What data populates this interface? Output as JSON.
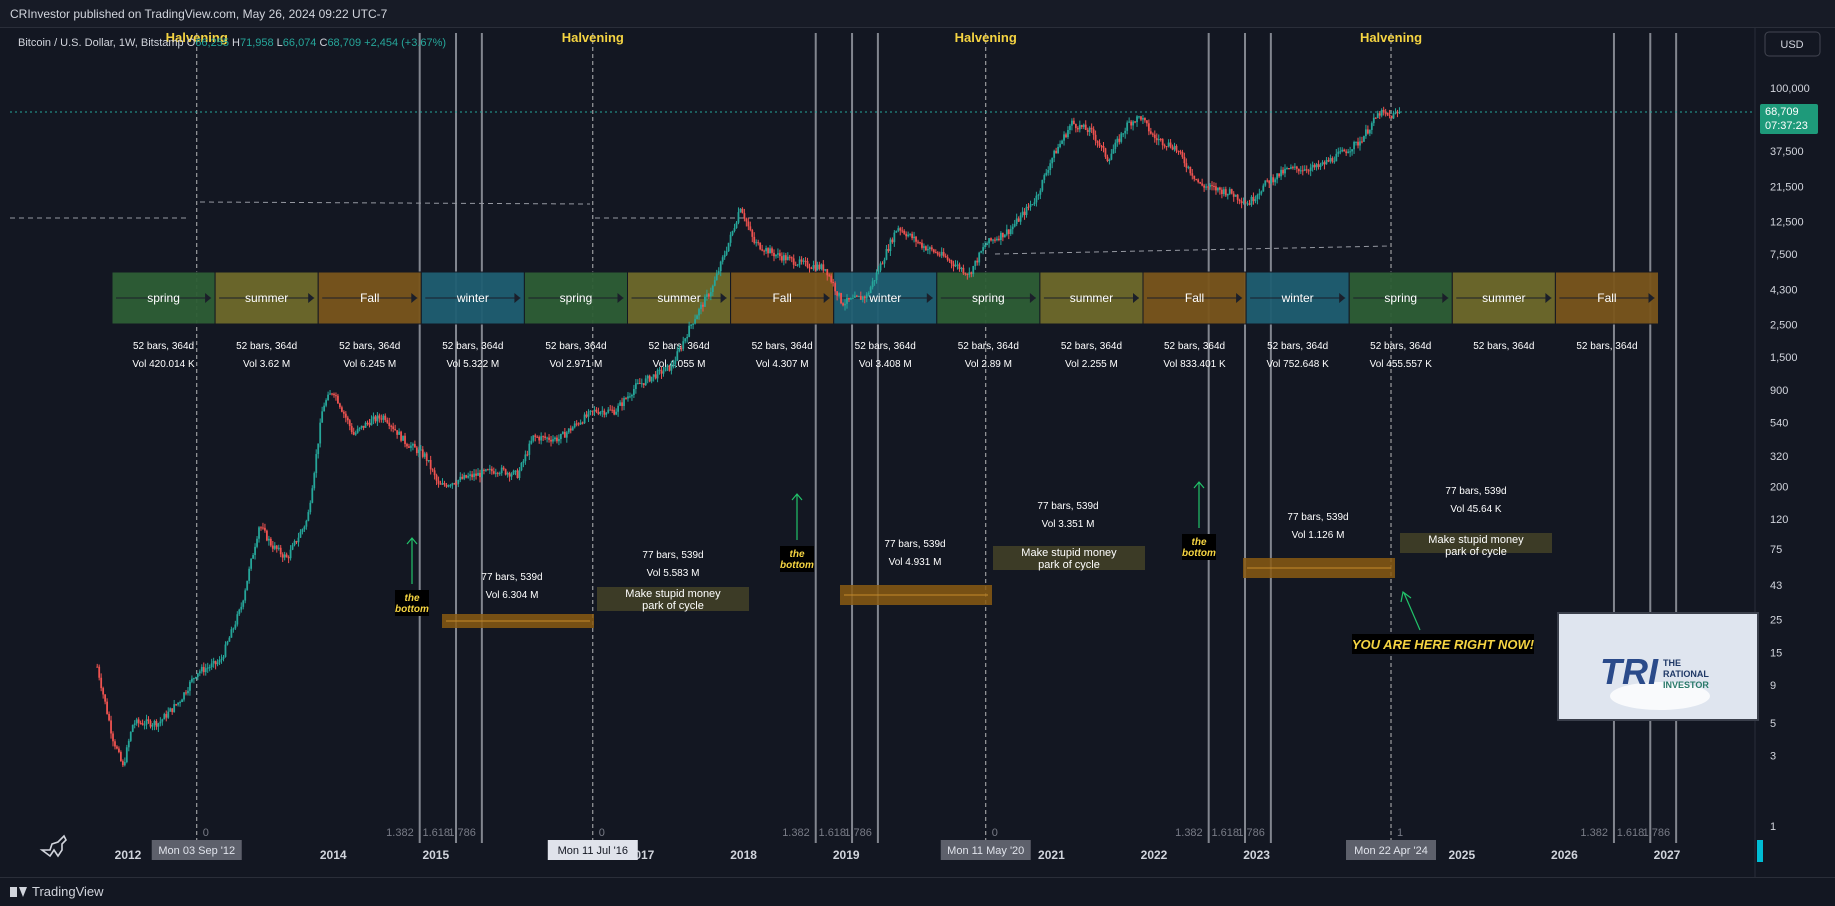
{
  "header": {
    "published": "CRInvestor published on TradingView.com, May 26, 2024 09:22 UTC-7"
  },
  "legend": {
    "symbol": "Bitcoin / U.S. Dollar, 1W, Bitstamp",
    "open_label": "O",
    "open_value": "66,255",
    "high_label": "H",
    "high_value": "71,958",
    "low_label": "L",
    "low_value": "66,074",
    "close_label": "C",
    "close_value": "68,709",
    "change": "+2,454 (+3.67%)"
  },
  "currency_button": "USD",
  "footer": {
    "brand": "TradingView"
  },
  "colors": {
    "background": "#131722",
    "up_candle": "#26a69a",
    "down_candle": "#ef5350",
    "halvening_text": "#f5d442",
    "spring": "#2e5e35",
    "summer": "#6e6a2b",
    "fall": "#7a561c",
    "winter": "#1f5e72",
    "last_price_badge": "#1e9a7a",
    "arrow": "#21c36a",
    "bottom_label_bg": "#000000",
    "bottom_label_text": "#f5d442"
  },
  "chart_data": {
    "type": "candlestick",
    "scale": "log",
    "ylim": [
      0.9,
      250000
    ],
    "y_ticks": [
      "100,000",
      "37,500",
      "21,500",
      "12,500",
      "7,500",
      "4,300",
      "2,500",
      "1,500",
      "900",
      "540",
      "320",
      "200",
      "120",
      "75",
      "43",
      "25",
      "15",
      "9",
      "5",
      "3",
      "1"
    ],
    "x_ticks": [
      "2012",
      "2014",
      "2015",
      "2017",
      "2018",
      "2019",
      "2021",
      "2022",
      "2023",
      "2025",
      "2026",
      "2027"
    ],
    "last_price": "68,709",
    "countdown": "07:37:23",
    "halvings": [
      {
        "label": "Halvening",
        "date": "Mon 03 Sep '12"
      },
      {
        "label": "Halvening",
        "date": "Mon 11 Jul '16"
      },
      {
        "label": "Halvening",
        "date": "Mon 11 May '20"
      },
      {
        "label": "Halvening",
        "date": "Mon 22 Apr '24"
      }
    ],
    "fib_labels": [
      "0",
      "1.382",
      "1.618",
      "1.786",
      "0",
      "1.382",
      "1.618",
      "1.786",
      "0",
      "1.382",
      "1.618",
      "1.786",
      "1",
      "1.382",
      "1.618",
      "1.786"
    ],
    "seasons": [
      {
        "name": "spring",
        "bars": "52 bars, 364d",
        "vol": "Vol 420.014 K"
      },
      {
        "name": "summer",
        "bars": "52 bars, 364d",
        "vol": "Vol 3.62 M"
      },
      {
        "name": "Fall",
        "bars": "52 bars, 364d",
        "vol": "Vol 6.245 M"
      },
      {
        "name": "winter",
        "bars": "52 bars, 364d",
        "vol": "Vol 5.322 M"
      },
      {
        "name": "spring",
        "bars": "52 bars, 364d",
        "vol": "Vol 2.971 M"
      },
      {
        "name": "summer",
        "bars": "52 bars, 364d",
        "vol": "Vol 4.055 M"
      },
      {
        "name": "Fall",
        "bars": "52 bars, 364d",
        "vol": "Vol 4.307 M"
      },
      {
        "name": "winter",
        "bars": "52 bars, 364d",
        "vol": "Vol 3.408 M"
      },
      {
        "name": "spring",
        "bars": "52 bars, 364d",
        "vol": "Vol 2.89 M"
      },
      {
        "name": "summer",
        "bars": "52 bars, 364d",
        "vol": "Vol 2.255 M"
      },
      {
        "name": "Fall",
        "bars": "52 bars, 364d",
        "vol": "Vol 833.401 K"
      },
      {
        "name": "winter",
        "bars": "52 bars, 364d",
        "vol": "Vol 752.648 K"
      },
      {
        "name": "spring",
        "bars": "52 bars, 364d",
        "vol": "Vol 455.557 K"
      },
      {
        "name": "summer",
        "bars": "52 bars, 364d",
        "vol": ""
      },
      {
        "name": "Fall",
        "bars": "52 bars, 364d",
        "vol": ""
      }
    ],
    "cycle_boxes": [
      {
        "bars": "77 bars, 539d",
        "vol": "Vol 6.304 M",
        "bottom_label": "the bottom"
      },
      {
        "bars": "77 bars, 539d",
        "vol": "Vol 5.583 M",
        "text": "Make stupid money park of cycle"
      },
      {
        "bars": "77 bars, 539d",
        "vol": "Vol 4.931 M",
        "bottom_label": "the bottom"
      },
      {
        "bars": "77 bars, 539d",
        "vol": "Vol 3.351 M",
        "text": "Make stupid money park of cycle"
      },
      {
        "bars": "77 bars, 539d",
        "vol": "Vol 1.126 M",
        "bottom_label": "the bottom"
      },
      {
        "bars": "77 bars, 539d",
        "vol": "Vol 45.64 K",
        "text": "Make stupid money park of cycle"
      }
    ],
    "annotation": "YOU ARE HERE RIGHT NOW!",
    "logo_text": [
      "TRI",
      "THE",
      "RATIONAL",
      "INVESTOR"
    ],
    "price_path": [
      [
        2011.7,
        12
      ],
      [
        2011.85,
        4
      ],
      [
        2011.95,
        2.5
      ],
      [
        2012.05,
        5
      ],
      [
        2012.3,
        5
      ],
      [
        2012.5,
        7
      ],
      [
        2012.67,
        11
      ],
      [
        2012.9,
        13
      ],
      [
        2013.1,
        30
      ],
      [
        2013.28,
        110
      ],
      [
        2013.4,
        80
      ],
      [
        2013.55,
        65
      ],
      [
        2013.75,
        120
      ],
      [
        2013.9,
        700
      ],
      [
        2014.0,
        900
      ],
      [
        2014.2,
        450
      ],
      [
        2014.35,
        550
      ],
      [
        2014.5,
        600
      ],
      [
        2014.7,
        400
      ],
      [
        2014.9,
        320
      ],
      [
        2015.03,
        200
      ],
      [
        2015.3,
        230
      ],
      [
        2015.6,
        260
      ],
      [
        2015.8,
        240
      ],
      [
        2015.95,
        430
      ],
      [
        2016.2,
        420
      ],
      [
        2016.4,
        550
      ],
      [
        2016.55,
        650
      ],
      [
        2016.75,
        650
      ],
      [
        2016.95,
        950
      ],
      [
        2017.1,
        1100
      ],
      [
        2017.3,
        1300
      ],
      [
        2017.5,
        2600
      ],
      [
        2017.7,
        4500
      ],
      [
        2017.9,
        11000
      ],
      [
        2017.97,
        16000
      ],
      [
        2018.1,
        9000
      ],
      [
        2018.3,
        7500
      ],
      [
        2018.55,
        6500
      ],
      [
        2018.8,
        6000
      ],
      [
        2018.96,
        3500
      ],
      [
        2019.2,
        3900
      ],
      [
        2019.4,
        8000
      ],
      [
        2019.5,
        11500
      ],
      [
        2019.75,
        8500
      ],
      [
        2019.95,
        7200
      ],
      [
        2020.2,
        5500
      ],
      [
        2020.36,
        8800
      ],
      [
        2020.6,
        11000
      ],
      [
        2020.85,
        18000
      ],
      [
        2021.0,
        33000
      ],
      [
        2021.2,
        58000
      ],
      [
        2021.4,
        50000
      ],
      [
        2021.55,
        33000
      ],
      [
        2021.75,
        58000
      ],
      [
        2021.87,
        64000
      ],
      [
        2022.0,
        46000
      ],
      [
        2022.2,
        40000
      ],
      [
        2022.45,
        22000
      ],
      [
        2022.75,
        19500
      ],
      [
        2022.92,
        16500
      ],
      [
        2023.1,
        23000
      ],
      [
        2023.3,
        28000
      ],
      [
        2023.6,
        29000
      ],
      [
        2023.85,
        37000
      ],
      [
        2024.0,
        43000
      ],
      [
        2024.2,
        68000
      ],
      [
        2024.3,
        64000
      ],
      [
        2024.4,
        68709
      ]
    ]
  }
}
